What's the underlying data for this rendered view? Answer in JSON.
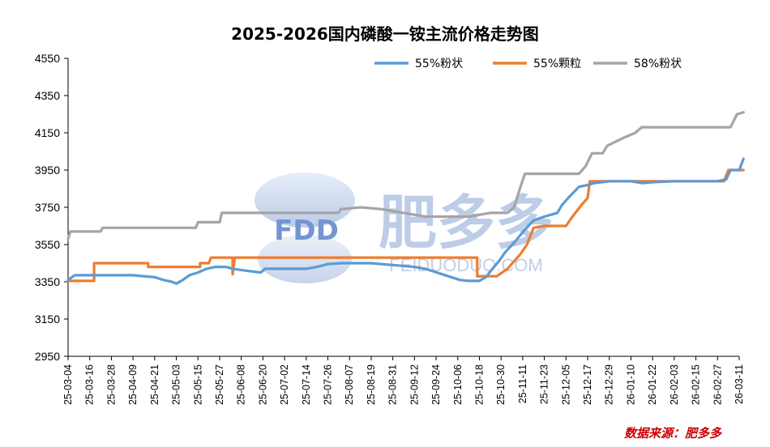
{
  "chart_data": {
    "type": "line",
    "title": "2025-2026国内磷酸一铵主流价格走势图",
    "source_note": "数据来源：肥多多",
    "watermark": {
      "logo": "FDD",
      "name": "肥多多",
      "url": "FEIDUODUO.COM"
    },
    "xlabel": "",
    "ylabel": "",
    "ylim": [
      2950,
      4550
    ],
    "yticks": [
      2950,
      3150,
      3350,
      3550,
      3750,
      3950,
      4150,
      4350,
      4550
    ],
    "x_ticks": [
      "25-03-04",
      "25-03-16",
      "25-03-28",
      "25-04-09",
      "25-04-21",
      "25-05-03",
      "25-05-15",
      "25-05-27",
      "25-06-08",
      "25-06-20",
      "25-07-02",
      "25-07-14",
      "25-07-26",
      "25-08-07",
      "25-08-19",
      "25-08-31",
      "25-09-12",
      "25-09-24",
      "25-10-06",
      "25-10-18",
      "25-10-30",
      "25-11-11",
      "25-11-23",
      "25-12-05",
      "25-12-17",
      "25-12-29",
      "26-01-10",
      "26-01-22",
      "26-02-03",
      "26-02-15",
      "26-02-27",
      "26-03-11"
    ],
    "legend_position": "top-right",
    "series": [
      {
        "name": "55%粉状",
        "color": "#5b9bd5",
        "points": [
          [
            0,
            3360
          ],
          [
            0.3,
            3385
          ],
          [
            3,
            3385
          ],
          [
            3.5,
            3380
          ],
          [
            4,
            3375
          ],
          [
            4.4,
            3360
          ],
          [
            4.8,
            3350
          ],
          [
            5.0,
            3340
          ],
          [
            5.3,
            3360
          ],
          [
            5.6,
            3385
          ],
          [
            6.0,
            3400
          ],
          [
            6.4,
            3420
          ],
          [
            6.8,
            3430
          ],
          [
            7.3,
            3430
          ],
          [
            7.6,
            3420
          ],
          [
            8.2,
            3410
          ],
          [
            8.9,
            3400
          ],
          [
            9.1,
            3420
          ],
          [
            10,
            3420
          ],
          [
            11,
            3420
          ],
          [
            11.5,
            3430
          ],
          [
            12,
            3445
          ],
          [
            12.6,
            3450
          ],
          [
            14,
            3450
          ],
          [
            15,
            3440
          ],
          [
            16,
            3430
          ],
          [
            16.5,
            3420
          ],
          [
            16.9,
            3405
          ],
          [
            17.3,
            3390
          ],
          [
            17.7,
            3375
          ],
          [
            18.1,
            3360
          ],
          [
            18.5,
            3355
          ],
          [
            19,
            3355
          ],
          [
            19.3,
            3375
          ],
          [
            19.6,
            3420
          ],
          [
            19.9,
            3460
          ],
          [
            20.2,
            3510
          ],
          [
            20.6,
            3560
          ],
          [
            21.1,
            3630
          ],
          [
            21.5,
            3680
          ],
          [
            22,
            3700
          ],
          [
            22.3,
            3710
          ],
          [
            22.6,
            3720
          ],
          [
            22.8,
            3760
          ],
          [
            23.1,
            3800
          ],
          [
            23.6,
            3860
          ],
          [
            24,
            3870
          ],
          [
            24.3,
            3880
          ],
          [
            25,
            3890
          ],
          [
            26,
            3890
          ],
          [
            26.5,
            3880
          ],
          [
            27,
            3885
          ],
          [
            28,
            3890
          ],
          [
            29,
            3890
          ],
          [
            30,
            3890
          ],
          [
            30.4,
            3900
          ],
          [
            30.6,
            3950
          ],
          [
            31,
            3950
          ],
          [
            31.2,
            4010
          ]
        ]
      },
      {
        "name": "55%颗粒",
        "color": "#ed7d31",
        "points": [
          [
            0,
            3355
          ],
          [
            1.2,
            3355
          ],
          [
            1.2,
            3450
          ],
          [
            3.7,
            3450
          ],
          [
            3.7,
            3430
          ],
          [
            6.1,
            3430
          ],
          [
            6.1,
            3450
          ],
          [
            6.5,
            3450
          ],
          [
            6.6,
            3480
          ],
          [
            7.6,
            3480
          ],
          [
            7.6,
            3390
          ],
          [
            7.7,
            3480
          ],
          [
            18.9,
            3480
          ],
          [
            18.9,
            3380
          ],
          [
            19.8,
            3380
          ],
          [
            20.3,
            3420
          ],
          [
            20.6,
            3460
          ],
          [
            20.9,
            3500
          ],
          [
            21.2,
            3550
          ],
          [
            21.5,
            3640
          ],
          [
            22,
            3650
          ],
          [
            23.0,
            3650
          ],
          [
            23.3,
            3700
          ],
          [
            23.7,
            3760
          ],
          [
            24.0,
            3800
          ],
          [
            24.1,
            3890
          ],
          [
            30.3,
            3890
          ],
          [
            30.5,
            3950
          ],
          [
            31.2,
            3950
          ]
        ]
      },
      {
        "name": "58%粉状",
        "color": "#a5a5a5",
        "points": [
          [
            0,
            3580
          ],
          [
            0.1,
            3620
          ],
          [
            1.5,
            3620
          ],
          [
            1.6,
            3640
          ],
          [
            5.9,
            3640
          ],
          [
            6.0,
            3670
          ],
          [
            7.0,
            3670
          ],
          [
            7.1,
            3720
          ],
          [
            12.5,
            3720
          ],
          [
            12.6,
            3740
          ],
          [
            13.5,
            3750
          ],
          [
            14.5,
            3740
          ],
          [
            15.5,
            3720
          ],
          [
            16,
            3710
          ],
          [
            16.5,
            3700
          ],
          [
            17.5,
            3700
          ],
          [
            18.5,
            3700
          ],
          [
            19.5,
            3720
          ],
          [
            20.3,
            3720
          ],
          [
            20.6,
            3750
          ],
          [
            20.9,
            3860
          ],
          [
            21.1,
            3930
          ],
          [
            23.6,
            3930
          ],
          [
            23.9,
            3970
          ],
          [
            24.2,
            4040
          ],
          [
            24.7,
            4040
          ],
          [
            24.9,
            4080
          ],
          [
            25.6,
            4120
          ],
          [
            26.2,
            4150
          ],
          [
            26.5,
            4180
          ],
          [
            30.6,
            4180
          ],
          [
            30.9,
            4250
          ],
          [
            31.2,
            4260
          ]
        ]
      }
    ]
  }
}
